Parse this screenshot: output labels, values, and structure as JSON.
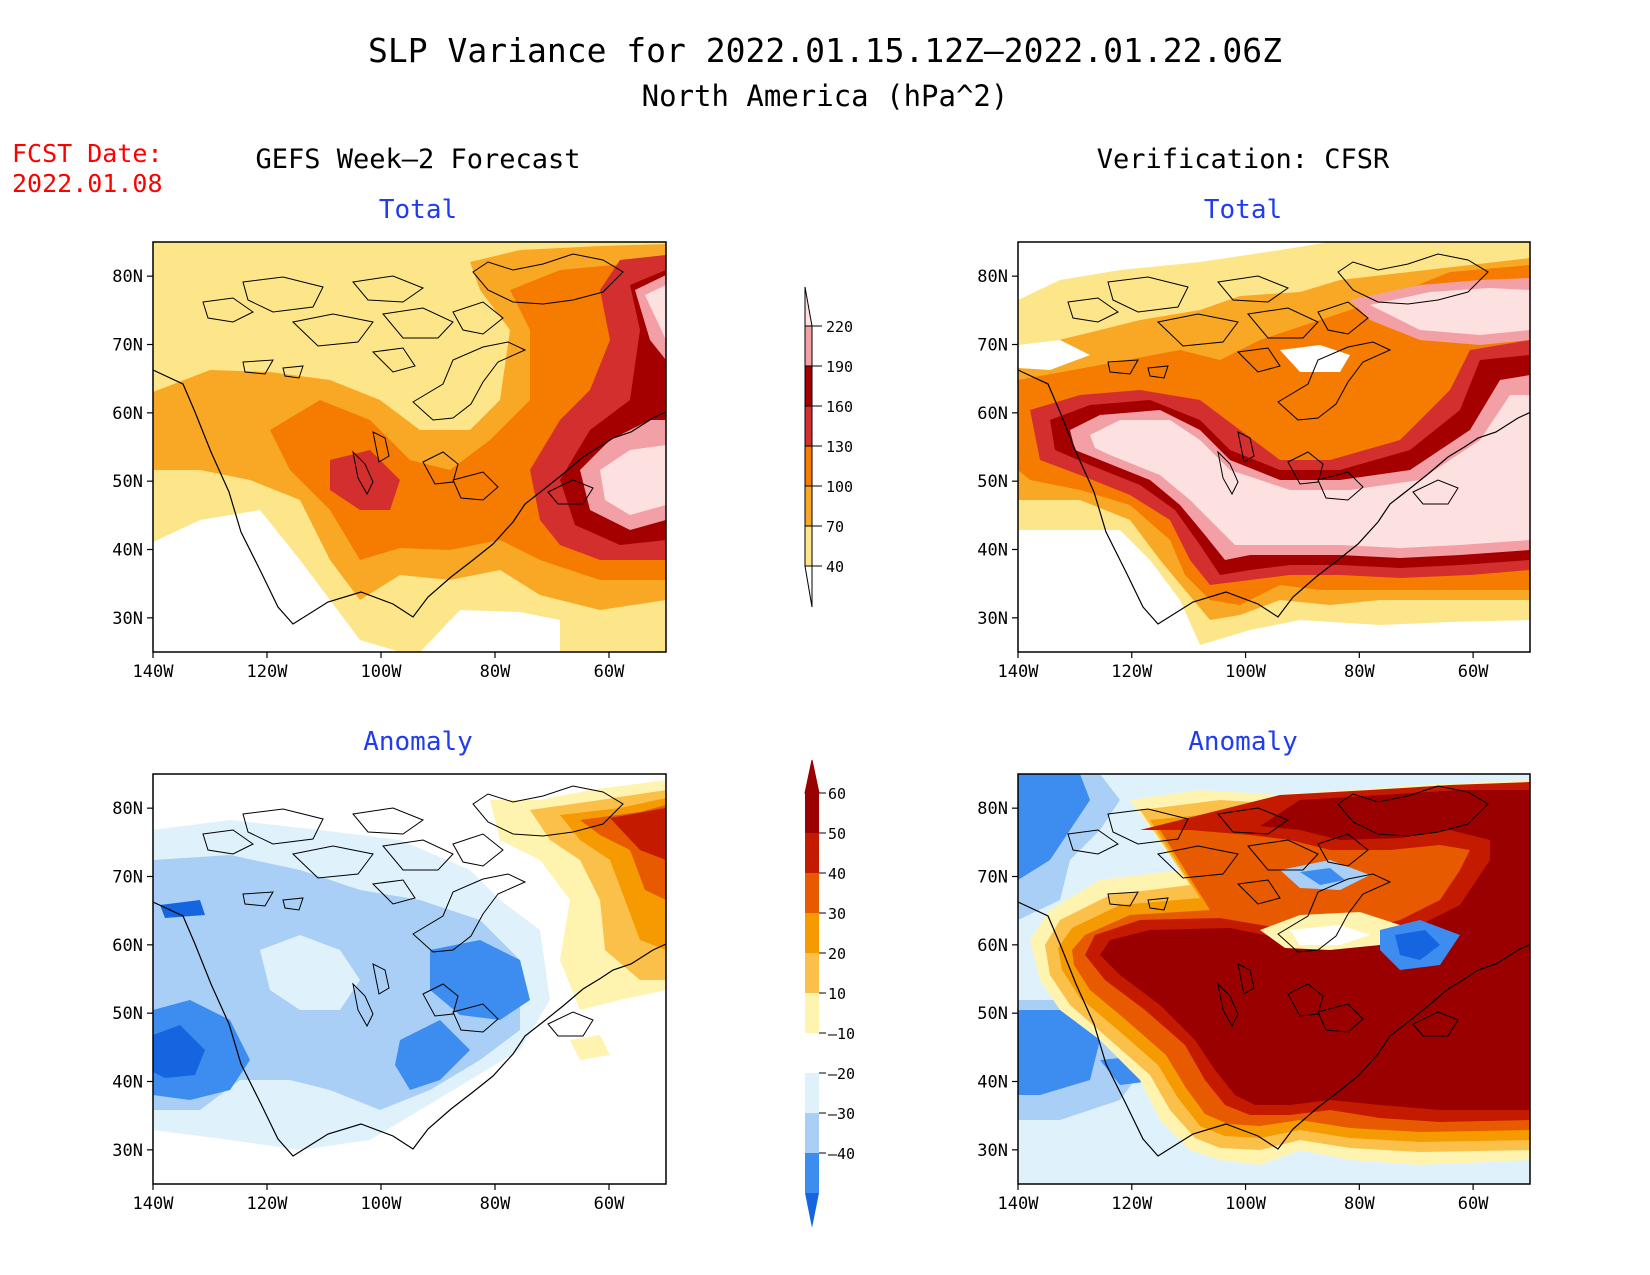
{
  "title": "SLP Variance for 2022.01.15.12Z—2022.01.22.06Z",
  "subtitle": "North America (hPa^2)",
  "fcst_label": "FCST Date:",
  "fcst_date": "2022.01.08",
  "column_left": "GEFS Week—2 Forecast",
  "column_right": "Verification: CFSR",
  "panel_titles": {
    "total": "Total",
    "anomaly": "Anomaly"
  },
  "axes": {
    "lat_ticks": [
      "80N",
      "70N",
      "60N",
      "50N",
      "40N",
      "30N"
    ],
    "lon_ticks": [
      "140W",
      "120W",
      "100W",
      "80W",
      "60W"
    ]
  },
  "colors": {
    "title": "#000000",
    "fcst": "#ff0000",
    "panel_title": "#1f3cf0",
    "total_fills": [
      "#fde68a",
      "#f9a825",
      "#f57c00",
      "#d32f2f",
      "#a50000",
      "#f2a0a6",
      "#fde0e0"
    ],
    "anomaly_fills": [
      "#1565e0",
      "#3d8cf0",
      "#a9cff6",
      "#dff2fc",
      "#ffffff",
      "#fff3b0",
      "#fbc04a",
      "#f59a00",
      "#e85a00",
      "#c41a00",
      "#9a0000"
    ]
  },
  "total_colorbar": {
    "labels": [
      "220",
      "190",
      "160",
      "130",
      "100",
      "70",
      "40"
    ]
  },
  "anomaly_colorbar": {
    "labels": [
      "60",
      "50",
      "40",
      "30",
      "20",
      "10",
      "—10",
      "—20",
      "—30",
      "–40"
    ]
  }
}
